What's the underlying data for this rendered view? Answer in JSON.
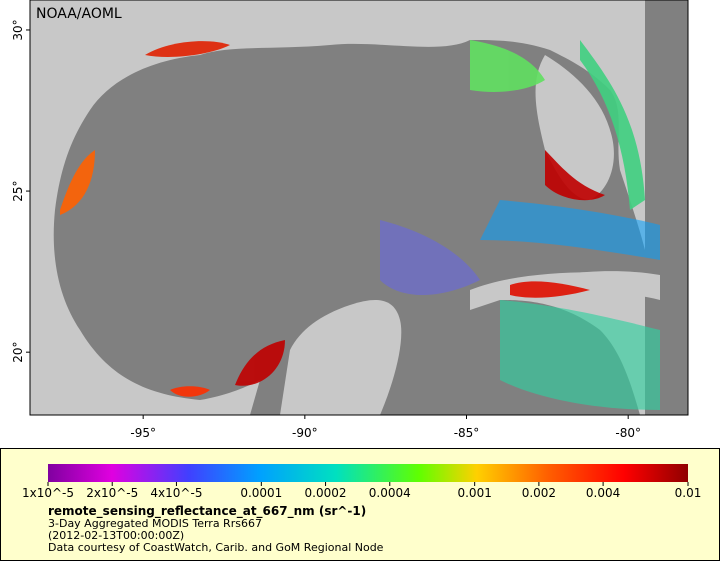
{
  "map": {
    "credit": "NOAA/AOML",
    "lon_range": [
      -98.5,
      -78.15
    ],
    "lat_range": [
      18.05,
      30.93
    ],
    "lat_ticks": [
      {
        "value": 30,
        "label": "30°"
      },
      {
        "value": 25,
        "label": "25°"
      },
      {
        "value": 20,
        "label": "20°"
      }
    ],
    "lon_ticks": [
      {
        "value": -95,
        "label": "-95°"
      },
      {
        "value": -90,
        "label": "-90°"
      },
      {
        "value": -85,
        "label": "-85°"
      },
      {
        "value": -80,
        "label": "-80°"
      }
    ]
  },
  "colorbar": {
    "scale": "log",
    "range": [
      1e-05,
      0.01
    ],
    "ticks": [
      {
        "value": 1e-05,
        "label": "1x10^-5"
      },
      {
        "value": 2e-05,
        "label": "2x10^-5"
      },
      {
        "value": 4e-05,
        "label": "4x10^-5"
      },
      0.0001,
      0.0002,
      0.0004,
      0.001,
      0.002,
      0.004,
      0.01
    ]
  },
  "legend": {
    "variable": "remote_sensing_reflectance_at_667_nm (sr^-1)",
    "description": "3-Day Aggregated MODIS Terra Rrs667",
    "time": "(2012-02-13T00:00:00Z)",
    "source": "Data courtesy of CoastWatch, Carib. and GoM Regional Node"
  }
}
